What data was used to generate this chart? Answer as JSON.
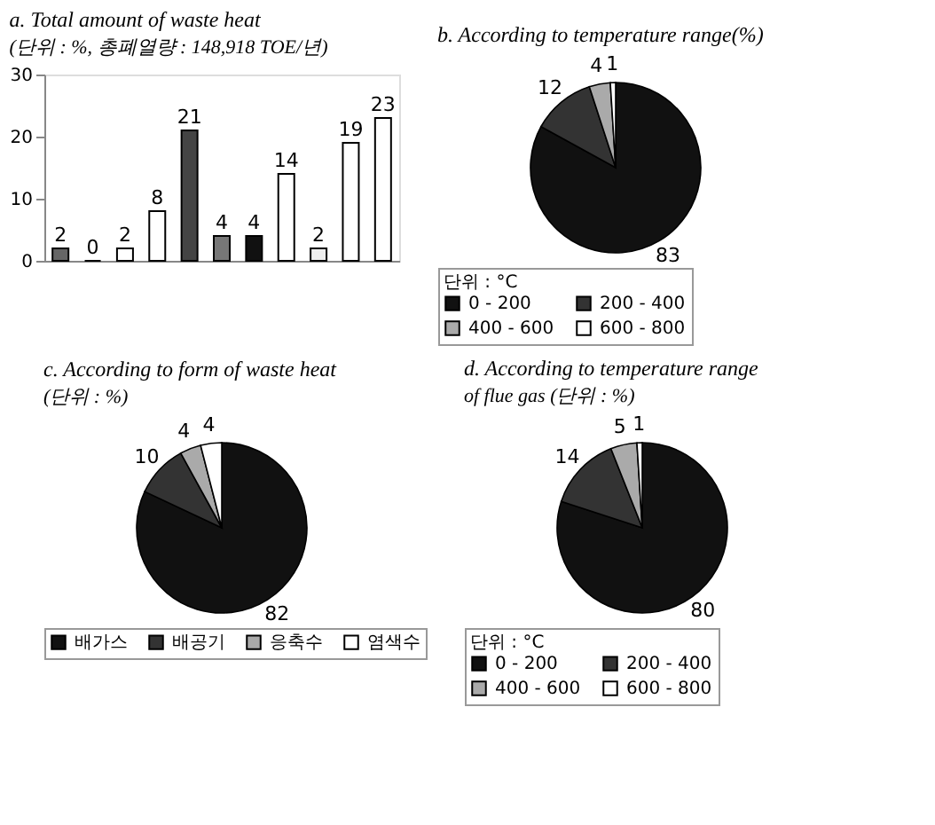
{
  "chart_data": [
    {
      "type": "bar",
      "title": "a. Total amount of waste heat",
      "subtitle": "(단위 : %, 총폐열량 : 148,918 TOE/년)",
      "categories": [
        null,
        null,
        null,
        null,
        null,
        null,
        null,
        null,
        null,
        null,
        null
      ],
      "values": [
        2,
        0,
        2,
        8,
        21,
        4,
        4,
        14,
        2,
        19,
        23
      ],
      "colors": [
        "#666666",
        "#000000",
        "#ffffff",
        "#ffffff",
        "#444444",
        "#777777",
        "#111111",
        "#ffffff",
        "#eeeeee",
        "#ffffff",
        "#ffffff"
      ],
      "ylim": [
        0,
        30
      ],
      "yticks": [
        0,
        10,
        20,
        30
      ],
      "data_labels": true,
      "grid": false
    },
    {
      "type": "pie",
      "title": "b. According to temperature range(%)",
      "legend_title": "단위 : °C",
      "categories": [
        "0 - 200",
        "200 - 400",
        "400 - 600",
        "600 - 800"
      ],
      "values": [
        83,
        12,
        4,
        1
      ],
      "colors": [
        "#111111",
        "#333333",
        "#aaaaaa",
        "#ffffff"
      ],
      "data_labels": true,
      "legend": "bottom"
    },
    {
      "type": "pie",
      "title": "c. According to form of waste heat",
      "subtitle": "(단위 : %)",
      "categories": [
        "배가스",
        "배공기",
        "응축수",
        "염색수"
      ],
      "values": [
        82,
        10,
        4,
        4
      ],
      "colors": [
        "#111111",
        "#333333",
        "#aaaaaa",
        "#ffffff"
      ],
      "data_labels": true,
      "legend": "bottom"
    },
    {
      "type": "pie",
      "title": "d. According to temperature range",
      "subtitle": "of flue gas (단위 : %)",
      "legend_title": "단위 : °C",
      "categories": [
        "0 - 200",
        "200 - 400",
        "400 - 600",
        "600 - 800"
      ],
      "values": [
        80,
        14,
        5,
        1
      ],
      "colors": [
        "#111111",
        "#333333",
        "#aaaaaa",
        "#ffffff"
      ],
      "data_labels": true,
      "legend": "bottom"
    }
  ]
}
